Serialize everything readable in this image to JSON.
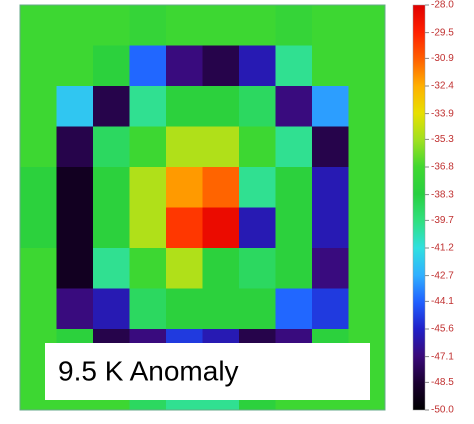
{
  "chart_data": {
    "type": "heatmap",
    "annotation": "9.5 K Anomaly",
    "z": [
      [
        -37,
        -37,
        -37,
        -37.5,
        -37,
        -37,
        -37,
        -37.5,
        -37,
        -37
      ],
      [
        -37,
        -37,
        -38,
        -44,
        -47,
        -48,
        -46,
        -40,
        -37,
        -37
      ],
      [
        -37,
        -42,
        -48,
        -40,
        -38,
        -38,
        -39,
        -47,
        -43,
        -37
      ],
      [
        -37,
        -48,
        -39,
        -37,
        -35,
        -35,
        -37,
        -40,
        -48,
        -37
      ],
      [
        -38,
        -49,
        -38,
        -35,
        -32,
        -31,
        -40,
        -38,
        -46,
        -37
      ],
      [
        -38,
        -49,
        -38,
        -35,
        -30,
        -28.5,
        -46,
        -38,
        -46,
        -37
      ],
      [
        -37,
        -49,
        -40,
        -37,
        -35,
        -38,
        -39,
        -38,
        -47,
        -37
      ],
      [
        -37,
        -47,
        -46,
        -39,
        -38,
        -38,
        -38,
        -44,
        -45,
        -37
      ],
      [
        -37,
        -38,
        -48,
        -47,
        -45,
        -46,
        -48,
        -47,
        -38,
        -37
      ],
      [
        -37,
        -37,
        -37,
        -39,
        -40,
        -40,
        -38,
        -37,
        -37,
        -37
      ]
    ],
    "zlim": [
      -50,
      -28
    ],
    "zticks": [
      {
        "value": -28,
        "label": "-28.0"
      },
      -29.5,
      -30.9,
      -32.4,
      -33.9,
      -35.3,
      -36.8,
      -38.3,
      -39.7,
      -41.2,
      -42.7,
      -44.1,
      -45.6,
      -47.1,
      -48.5,
      {
        "value": -50,
        "label": "-50.0"
      }
    ],
    "colors": [
      "#000000",
      "#1a0030",
      "#3a0a7a",
      "#2020c8",
      "#2060ff",
      "#30b0ff",
      "#30e0e0",
      "#30e080",
      "#28d040",
      "#40d830",
      "#a0e020",
      "#e8e000",
      "#ffb000",
      "#ff6000",
      "#ff2000",
      "#e00000"
    ]
  }
}
